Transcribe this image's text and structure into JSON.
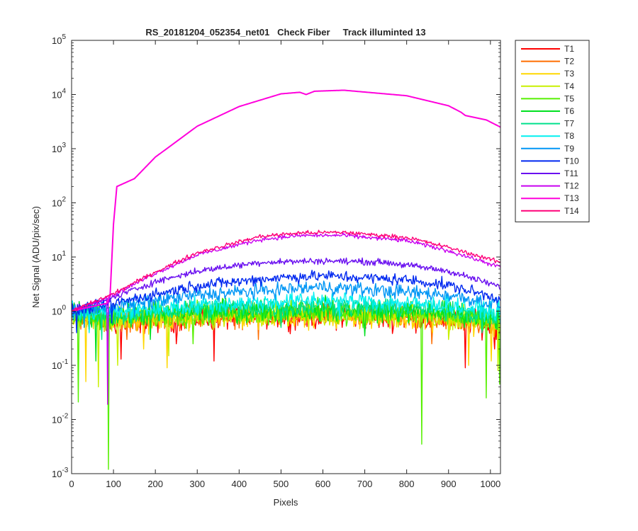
{
  "chart_data": {
    "type": "line",
    "title": "RS_20181204_052354_net01   Check Fiber     Track illuminted 13",
    "xlabel": "Pixels",
    "ylabel": "Net Signal (ADU/pix/sec)",
    "xlim": [
      0,
      1024
    ],
    "ylim": [
      0.001,
      100000
    ],
    "yscale": "log",
    "grid": false,
    "legend_position": "outside-right",
    "x_ticks": [
      0,
      100,
      200,
      300,
      400,
      500,
      600,
      700,
      800,
      900,
      1000
    ],
    "y_tick_exponents": [
      -3,
      -2,
      -1,
      0,
      1,
      2,
      3,
      4,
      5
    ],
    "y_tick_base": "10",
    "series": [
      {
        "name": "T1",
        "color": "#ff0000",
        "envelope": [
          [
            0,
            0.8
          ],
          [
            100,
            0.6
          ],
          [
            300,
            0.75
          ],
          [
            600,
            0.8
          ],
          [
            900,
            0.7
          ],
          [
            1024,
            0.5
          ]
        ],
        "noise": 0.3,
        "spikes": [
          [
            118,
            0.13
          ],
          [
            250,
            0.25
          ],
          [
            340,
            0.12
          ],
          [
            940,
            0.09
          ],
          [
            1010,
            0.2
          ]
        ]
      },
      {
        "name": "T2",
        "color": "#ff6d00",
        "envelope": [
          [
            0,
            0.8
          ],
          [
            100,
            0.65
          ],
          [
            300,
            0.8
          ],
          [
            600,
            0.85
          ],
          [
            900,
            0.7
          ],
          [
            1024,
            0.55
          ]
        ],
        "noise": 0.28,
        "spikes": [
          [
            131,
            0.3
          ],
          [
            445,
            0.3
          ],
          [
            860,
            0.25
          ]
        ]
      },
      {
        "name": "T3",
        "color": "#ffd700",
        "envelope": [
          [
            0,
            0.8
          ],
          [
            100,
            0.65
          ],
          [
            300,
            0.8
          ],
          [
            600,
            0.85
          ],
          [
            900,
            0.75
          ],
          [
            1024,
            0.55
          ]
        ],
        "noise": 0.3,
        "spikes": [
          [
            34,
            0.05
          ],
          [
            172,
            0.2
          ],
          [
            228,
            0.09
          ],
          [
            948,
            0.1
          ],
          [
            1002,
            0.12
          ]
        ]
      },
      {
        "name": "T4",
        "color": "#c8f000",
        "envelope": [
          [
            0,
            0.8
          ],
          [
            100,
            0.7
          ],
          [
            300,
            0.85
          ],
          [
            600,
            0.9
          ],
          [
            900,
            0.8
          ],
          [
            1024,
            0.6
          ]
        ],
        "noise": 0.3,
        "spikes": [
          [
            64,
            0.04
          ],
          [
            110,
            0.1
          ],
          [
            232,
            0.15
          ],
          [
            900,
            0.3
          ],
          [
            1018,
            0.08
          ]
        ]
      },
      {
        "name": "T5",
        "color": "#56f000",
        "envelope": [
          [
            0,
            0.85
          ],
          [
            100,
            0.75
          ],
          [
            300,
            0.9
          ],
          [
            600,
            0.95
          ],
          [
            900,
            0.85
          ],
          [
            1024,
            0.65
          ]
        ],
        "noise": 0.3,
        "spikes": [
          [
            16,
            0.021
          ],
          [
            88,
            0.0012
          ],
          [
            290,
            0.25
          ],
          [
            836,
            0.0035
          ],
          [
            990,
            0.025
          ],
          [
            1022,
            0.045
          ]
        ]
      },
      {
        "name": "T6",
        "color": "#00e020",
        "envelope": [
          [
            0,
            0.9
          ],
          [
            100,
            0.8
          ],
          [
            300,
            1.0
          ],
          [
            600,
            1.1
          ],
          [
            900,
            0.95
          ],
          [
            1024,
            0.75
          ]
        ],
        "noise": 0.28,
        "spikes": [
          [
            58,
            0.12
          ],
          [
            188,
            0.3
          ],
          [
            700,
            0.35
          ]
        ]
      },
      {
        "name": "T7",
        "color": "#00e08c",
        "envelope": [
          [
            0,
            0.9
          ],
          [
            100,
            0.85
          ],
          [
            300,
            1.1
          ],
          [
            600,
            1.25
          ],
          [
            900,
            1.05
          ],
          [
            1024,
            0.8
          ]
        ],
        "noise": 0.25,
        "spikes": [
          [
            72,
            0.3
          ],
          [
            500,
            0.5
          ],
          [
            980,
            0.4
          ]
        ]
      },
      {
        "name": "T8",
        "color": "#00f0f0",
        "envelope": [
          [
            0,
            0.95
          ],
          [
            100,
            0.95
          ],
          [
            300,
            1.3
          ],
          [
            600,
            1.6
          ],
          [
            900,
            1.3
          ],
          [
            1024,
            0.95
          ]
        ],
        "noise": 0.22,
        "spikes": [
          [
            42,
            0.4
          ],
          [
            640,
            0.7
          ]
        ]
      },
      {
        "name": "T9",
        "color": "#0096f5",
        "envelope": [
          [
            0,
            1.0
          ],
          [
            100,
            1.2
          ],
          [
            300,
            2.0
          ],
          [
            600,
            2.8
          ],
          [
            900,
            2.0
          ],
          [
            1024,
            1.3
          ]
        ],
        "noise": 0.18,
        "spikes": [
          [
            30,
            0.5
          ],
          [
            150,
            0.8
          ]
        ]
      },
      {
        "name": "T10",
        "color": "#0028f0",
        "envelope": [
          [
            0,
            1.0
          ],
          [
            100,
            1.4
          ],
          [
            300,
            3.0
          ],
          [
            500,
            4.2
          ],
          [
            600,
            4.5
          ],
          [
            800,
            3.8
          ],
          [
            900,
            3.0
          ],
          [
            1024,
            1.7
          ]
        ],
        "noise": 0.14,
        "spikes": [
          [
            12,
            0.4
          ],
          [
            95,
            0.6
          ]
        ]
      },
      {
        "name": "T11",
        "color": "#6a0ff0",
        "envelope": [
          [
            0,
            1.0
          ],
          [
            100,
            1.8
          ],
          [
            200,
            3.5
          ],
          [
            300,
            5.5
          ],
          [
            450,
            8.0
          ],
          [
            600,
            8.5
          ],
          [
            750,
            8.0
          ],
          [
            900,
            5.5
          ],
          [
            1024,
            2.8
          ]
        ],
        "noise": 0.08,
        "spikes": []
      },
      {
        "name": "T12",
        "color": "#c800f0",
        "envelope": [
          [
            0,
            1.0
          ],
          [
            100,
            2.0
          ],
          [
            200,
            5.0
          ],
          [
            300,
            11.0
          ],
          [
            450,
            21.0
          ],
          [
            550,
            25.0
          ],
          [
            650,
            25.0
          ],
          [
            800,
            20.0
          ],
          [
            900,
            13.0
          ],
          [
            1024,
            6.5
          ]
        ],
        "noise": 0.05,
        "spikes": [
          [
            85,
            0.019
          ]
        ]
      },
      {
        "name": "T13",
        "color": "#ff00dc",
        "envelope": [
          [
            0,
            1.0
          ],
          [
            85,
            1.4
          ],
          [
            92,
            2.0
          ],
          [
            100,
            40
          ],
          [
            108,
            200
          ],
          [
            150,
            280
          ],
          [
            200,
            700
          ],
          [
            300,
            2600
          ],
          [
            400,
            6000
          ],
          [
            500,
            10300
          ],
          [
            545,
            11000
          ],
          [
            560,
            10000
          ],
          [
            580,
            11500
          ],
          [
            650,
            12000
          ],
          [
            800,
            9500
          ],
          [
            900,
            6200
          ],
          [
            930,
            4700
          ],
          [
            940,
            4100
          ],
          [
            990,
            3400
          ],
          [
            1024,
            2500
          ]
        ],
        "noise": 0.0,
        "spikes": []
      },
      {
        "name": "T14",
        "color": "#ff0078",
        "envelope": [
          [
            0,
            1.0
          ],
          [
            100,
            2.1
          ],
          [
            200,
            5.3
          ],
          [
            300,
            12.0
          ],
          [
            450,
            24.0
          ],
          [
            550,
            28.0
          ],
          [
            650,
            28.5
          ],
          [
            800,
            23.0
          ],
          [
            900,
            15.0
          ],
          [
            1024,
            8.0
          ]
        ],
        "noise": 0.05,
        "spikes": []
      }
    ]
  }
}
